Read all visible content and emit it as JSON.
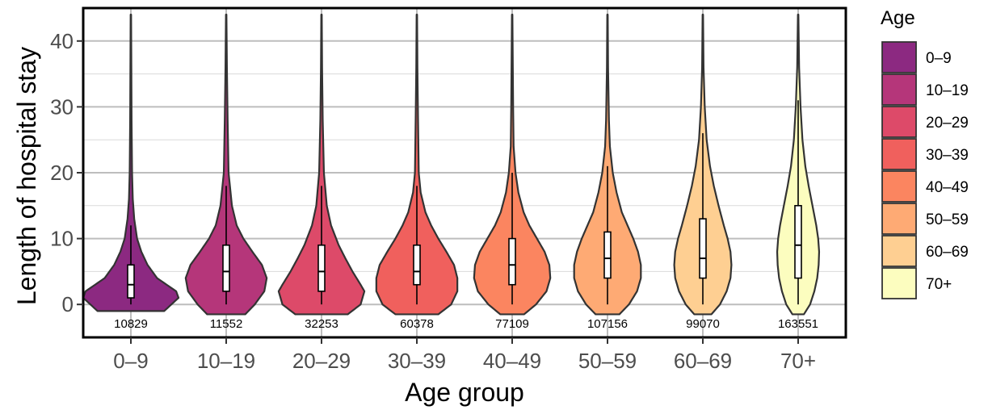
{
  "chart_data": {
    "type": "violin",
    "xlabel": "Age group",
    "ylabel": "Length of hospital stay",
    "ylim": [
      -5,
      45
    ],
    "yticks": [
      0,
      10,
      20,
      30,
      40
    ],
    "grid": true,
    "legend": {
      "title": "Age",
      "position": "right"
    },
    "categories": [
      "0–9",
      "10–19",
      "20–29",
      "30–39",
      "40–49",
      "50–59",
      "60–69",
      "70+"
    ],
    "colors": [
      "#8c2981",
      "#b5367a",
      "#dd4a69",
      "#f0605d",
      "#fb8560",
      "#feaa74",
      "#fecf92",
      "#fcfdbf"
    ],
    "counts": [
      "10829",
      "11552",
      "32253",
      "60378",
      "77109",
      "107156",
      "99070",
      "163551"
    ],
    "box": [
      {
        "q1": 1,
        "median": 3,
        "q3": 6,
        "lower": 0,
        "upper": 12
      },
      {
        "q1": 2,
        "median": 5,
        "q3": 9,
        "lower": 0,
        "upper": 18
      },
      {
        "q1": 2,
        "median": 5,
        "q3": 9,
        "lower": 0,
        "upper": 18
      },
      {
        "q1": 3,
        "median": 5,
        "q3": 9,
        "lower": 0,
        "upper": 18
      },
      {
        "q1": 3,
        "median": 6,
        "q3": 10,
        "lower": 0,
        "upper": 20
      },
      {
        "q1": 4,
        "median": 7,
        "q3": 11,
        "lower": 0,
        "upper": 21
      },
      {
        "q1": 4,
        "median": 7,
        "q3": 13,
        "lower": 0,
        "upper": 26
      },
      {
        "q1": 4,
        "median": 9,
        "q3": 15,
        "lower": 0,
        "upper": 31
      }
    ],
    "min": 0,
    "max": 44,
    "density_profiles": [
      [
        [
          -1,
          0.7
        ],
        [
          1,
          1.0
        ],
        [
          2,
          0.95
        ],
        [
          3,
          0.75
        ],
        [
          4,
          0.55
        ],
        [
          6,
          0.35
        ],
        [
          8,
          0.22
        ],
        [
          10,
          0.13
        ],
        [
          13,
          0.07
        ],
        [
          16,
          0.04
        ],
        [
          20,
          0.025
        ],
        [
          28,
          0.015
        ],
        [
          36,
          0.01
        ],
        [
          44,
          0.005
        ]
      ],
      [
        [
          -1.5,
          0.4
        ],
        [
          0,
          0.6
        ],
        [
          2,
          0.8
        ],
        [
          4,
          0.85
        ],
        [
          6,
          0.75
        ],
        [
          8,
          0.55
        ],
        [
          10,
          0.36
        ],
        [
          12,
          0.22
        ],
        [
          15,
          0.12
        ],
        [
          20,
          0.05
        ],
        [
          28,
          0.03
        ],
        [
          36,
          0.015
        ],
        [
          44,
          0.005
        ]
      ],
      [
        [
          -1.5,
          0.55
        ],
        [
          0,
          0.82
        ],
        [
          2,
          0.9
        ],
        [
          3,
          0.82
        ],
        [
          5,
          0.65
        ],
        [
          7,
          0.5
        ],
        [
          9,
          0.36
        ],
        [
          12,
          0.2
        ],
        [
          15,
          0.11
        ],
        [
          20,
          0.05
        ],
        [
          28,
          0.025
        ],
        [
          36,
          0.012
        ],
        [
          44,
          0.005
        ]
      ],
      [
        [
          -1.5,
          0.45
        ],
        [
          0,
          0.72
        ],
        [
          2,
          0.85
        ],
        [
          4,
          0.85
        ],
        [
          6,
          0.78
        ],
        [
          8,
          0.62
        ],
        [
          10,
          0.45
        ],
        [
          12,
          0.3
        ],
        [
          14,
          0.18
        ],
        [
          17,
          0.08
        ],
        [
          20,
          0.04
        ],
        [
          28,
          0.025
        ],
        [
          36,
          0.012
        ],
        [
          44,
          0.005
        ]
      ],
      [
        [
          -1.5,
          0.25
        ],
        [
          0,
          0.5
        ],
        [
          2,
          0.72
        ],
        [
          4,
          0.8
        ],
        [
          6,
          0.78
        ],
        [
          8,
          0.68
        ],
        [
          10,
          0.52
        ],
        [
          12,
          0.36
        ],
        [
          14,
          0.24
        ],
        [
          17,
          0.13
        ],
        [
          20,
          0.07
        ],
        [
          24,
          0.03
        ],
        [
          30,
          0.02
        ],
        [
          44,
          0.005
        ]
      ],
      [
        [
          -1.5,
          0.25
        ],
        [
          0,
          0.45
        ],
        [
          2,
          0.62
        ],
        [
          4,
          0.7
        ],
        [
          6,
          0.7
        ],
        [
          8,
          0.64
        ],
        [
          10,
          0.54
        ],
        [
          12,
          0.42
        ],
        [
          14,
          0.3
        ],
        [
          17,
          0.19
        ],
        [
          20,
          0.11
        ],
        [
          24,
          0.05
        ],
        [
          28,
          0.03
        ],
        [
          36,
          0.012
        ],
        [
          44,
          0.005
        ]
      ],
      [
        [
          -1.5,
          0.18
        ],
        [
          0,
          0.36
        ],
        [
          2,
          0.5
        ],
        [
          4,
          0.58
        ],
        [
          6,
          0.6
        ],
        [
          8,
          0.58
        ],
        [
          10,
          0.52
        ],
        [
          12,
          0.44
        ],
        [
          15,
          0.33
        ],
        [
          18,
          0.23
        ],
        [
          21,
          0.15
        ],
        [
          25,
          0.08
        ],
        [
          30,
          0.04
        ],
        [
          36,
          0.015
        ],
        [
          44,
          0.005
        ]
      ],
      [
        [
          -1.5,
          0.12
        ],
        [
          0,
          0.25
        ],
        [
          2,
          0.34
        ],
        [
          4,
          0.4
        ],
        [
          6,
          0.43
        ],
        [
          8,
          0.44
        ],
        [
          10,
          0.42
        ],
        [
          12,
          0.38
        ],
        [
          15,
          0.3
        ],
        [
          18,
          0.22
        ],
        [
          21,
          0.15
        ],
        [
          25,
          0.09
        ],
        [
          30,
          0.05
        ],
        [
          36,
          0.02
        ],
        [
          44,
          0.005
        ]
      ]
    ]
  }
}
